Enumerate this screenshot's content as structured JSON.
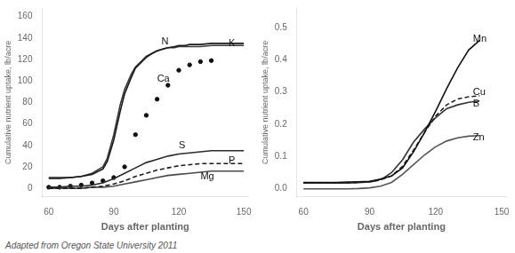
{
  "chart_data": [
    {
      "type": "line",
      "xlabel": "Days after planting",
      "ylabel": "Cumulative nutrient uptake, lb/acre",
      "xlim": [
        57,
        152
      ],
      "ylim": [
        -8,
        168
      ],
      "xticks": [
        60,
        90,
        120,
        150
      ],
      "yticks": [
        0,
        20,
        40,
        60,
        80,
        100,
        120,
        140,
        160
      ],
      "grid": false,
      "series": [
        {
          "name": "N",
          "color": "#1a1a1a",
          "line_style": "solid",
          "x": [
            60,
            65,
            70,
            75,
            80,
            85,
            87,
            90,
            93,
            95,
            98,
            100,
            103,
            105,
            108,
            110,
            113,
            115,
            118,
            120,
            123,
            125,
            128,
            130,
            135,
            140,
            145,
            150
          ],
          "values": [
            10,
            10,
            10,
            11,
            13,
            18,
            25,
            45,
            72,
            88,
            103,
            112,
            118,
            122,
            126,
            128,
            130,
            131,
            132,
            133,
            133,
            134,
            134,
            134,
            135,
            135,
            135,
            135
          ]
        },
        {
          "name": "K",
          "color": "#3a3a3a",
          "line_style": "solid",
          "x": [
            60,
            65,
            70,
            75,
            80,
            85,
            87,
            90,
            93,
            95,
            98,
            100,
            103,
            105,
            108,
            110,
            113,
            115,
            118,
            120,
            123,
            125,
            128,
            130,
            135,
            140,
            145,
            150
          ],
          "values": [
            9,
            9,
            10,
            11,
            14,
            20,
            28,
            50,
            78,
            92,
            106,
            113,
            119,
            123,
            126,
            128,
            130,
            131,
            131,
            132,
            132,
            132,
            132,
            132,
            133,
            133,
            133,
            133
          ]
        },
        {
          "name": "S",
          "color": "#2a2a2a",
          "line_style": "solid",
          "x": [
            60,
            65,
            70,
            75,
            80,
            85,
            90,
            95,
            100,
            105,
            110,
            115,
            120,
            125,
            130,
            135,
            140,
            145,
            150
          ],
          "values": [
            1,
            1,
            2,
            2,
            3,
            5,
            9,
            14,
            19,
            24,
            27,
            30,
            32,
            33,
            34,
            35,
            35,
            35,
            35
          ]
        },
        {
          "name": "P",
          "color": "#1a1a1a",
          "line_style": "dashed",
          "x": [
            60,
            65,
            70,
            75,
            80,
            85,
            90,
            95,
            100,
            105,
            110,
            115,
            120,
            125,
            130,
            135,
            140,
            145,
            150
          ],
          "values": [
            0,
            0,
            0,
            0,
            1,
            2,
            4,
            7,
            11,
            14,
            17,
            19,
            21,
            22,
            23,
            23,
            23,
            23,
            23
          ]
        },
        {
          "name": "Mg",
          "color": "#4a4a4a",
          "line_style": "solid",
          "x": [
            60,
            65,
            70,
            75,
            80,
            85,
            90,
            95,
            100,
            105,
            110,
            115,
            120,
            125,
            130,
            135,
            140,
            145,
            150
          ],
          "values": [
            0,
            0,
            0,
            0,
            1,
            1,
            2,
            4,
            6,
            8,
            10,
            12,
            13,
            14,
            15,
            16,
            16,
            16,
            16
          ]
        },
        {
          "name": "Ca",
          "type": "scatter",
          "marker": "circle",
          "color": "#111111",
          "x": [
            60,
            65,
            70,
            75,
            80,
            85,
            90,
            95,
            100,
            105,
            110,
            115,
            120,
            125,
            130,
            135
          ],
          "values": [
            1,
            1,
            2,
            3,
            5,
            7,
            10,
            20,
            50,
            68,
            83,
            96,
            110,
            115,
            118,
            119
          ]
        }
      ],
      "annotations": [
        {
          "text": "N",
          "x": 112,
          "y": 137
        },
        {
          "text": "K",
          "x": 143,
          "y": 135
        },
        {
          "text": "Ca",
          "x": 110,
          "y": 102
        },
        {
          "text": "S",
          "x": 120,
          "y": 40
        },
        {
          "text": "P",
          "x": 143,
          "y": 26
        },
        {
          "text": "Mg",
          "x": 130,
          "y": 11
        }
      ],
      "caption": "Adapted from Oregon State University 2011"
    },
    {
      "type": "line",
      "xlabel": "Days after planting",
      "ylabel": "Cumulative nutrient uptake, lb/acre",
      "xlim": [
        57,
        152
      ],
      "ylim": [
        -0.025,
        0.56
      ],
      "xticks": [
        60,
        90,
        120,
        150
      ],
      "yticks": [
        {
          "value": 0,
          "label": "0.0"
        },
        0.1,
        0.2,
        0.3,
        0.4,
        0.5
      ],
      "grid": false,
      "series": [
        {
          "name": "Mn",
          "color": "#111111",
          "line_style": "solid",
          "x": [
            60,
            65,
            70,
            75,
            80,
            85,
            90,
            95,
            100,
            105,
            110,
            115,
            120,
            125,
            130,
            135,
            140
          ],
          "values": [
            0.02,
            0.02,
            0.02,
            0.02,
            0.021,
            0.022,
            0.023,
            0.03,
            0.04,
            0.065,
            0.115,
            0.175,
            0.24,
            0.31,
            0.375,
            0.43,
            0.46
          ]
        },
        {
          "name": "Cu",
          "color": "#222222",
          "line_style": "dashed",
          "x": [
            60,
            65,
            70,
            75,
            80,
            85,
            90,
            95,
            100,
            105,
            110,
            115,
            120,
            125,
            130,
            135,
            140
          ],
          "values": [
            0.018,
            0.018,
            0.018,
            0.018,
            0.019,
            0.02,
            0.022,
            0.028,
            0.04,
            0.07,
            0.12,
            0.175,
            0.225,
            0.26,
            0.278,
            0.285,
            0.288
          ]
        },
        {
          "name": "B",
          "color": "#333333",
          "line_style": "solid",
          "x": [
            60,
            65,
            70,
            75,
            80,
            85,
            90,
            93,
            96,
            100,
            105,
            110,
            115,
            120,
            125,
            130,
            135,
            140
          ],
          "values": [
            0.018,
            0.018,
            0.018,
            0.018,
            0.018,
            0.019,
            0.021,
            0.025,
            0.032,
            0.05,
            0.09,
            0.145,
            0.185,
            0.22,
            0.248,
            0.26,
            0.268,
            0.272
          ]
        },
        {
          "name": "Zn",
          "color": "#555555",
          "line_style": "solid",
          "x": [
            60,
            65,
            70,
            75,
            80,
            85,
            90,
            95,
            100,
            105,
            110,
            115,
            120,
            125,
            130,
            135,
            140
          ],
          "values": [
            0.0,
            0.0,
            0.0,
            0.0,
            0.0,
            0.001,
            0.003,
            0.008,
            0.02,
            0.045,
            0.075,
            0.105,
            0.13,
            0.148,
            0.158,
            0.163,
            0.165
          ]
        }
      ],
      "annotations": [
        {
          "text": "Mn",
          "x": 137,
          "y": 0.465
        },
        {
          "text": "Cu",
          "x": 137,
          "y": 0.3
        },
        {
          "text": "B",
          "x": 137,
          "y": 0.262
        },
        {
          "text": "Zn",
          "x": 137,
          "y": 0.16
        }
      ]
    }
  ]
}
